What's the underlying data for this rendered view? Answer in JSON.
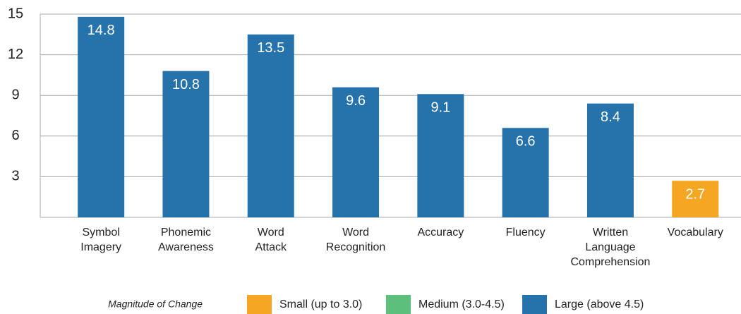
{
  "chart_data": {
    "type": "bar",
    "categories": [
      "Symbol Imagery",
      "Phonemic Awareness",
      "Word Attack",
      "Word Recognition",
      "Accuracy",
      "Fluency",
      "Written Language Comprehension",
      "Vocabulary"
    ],
    "values": [
      14.8,
      10.8,
      13.5,
      9.6,
      9.1,
      6.6,
      8.4,
      2.7
    ],
    "colors": [
      "#2673ab",
      "#2673ab",
      "#2673ab",
      "#2673ab",
      "#2673ab",
      "#2673ab",
      "#2673ab",
      "#f5a623"
    ],
    "ylim": [
      0,
      15
    ],
    "yticks": [
      3,
      6,
      9,
      12,
      15
    ],
    "grid": true,
    "legend": {
      "title": "Magnitude of Change",
      "items": [
        {
          "name": "Small (up to 3.0)",
          "color": "#f5a623"
        },
        {
          "name": "Medium (3.0-4.5)",
          "color": "#5cbf7b"
        },
        {
          "name": "Large (above 4.5)",
          "color": "#2673ab"
        }
      ]
    }
  }
}
